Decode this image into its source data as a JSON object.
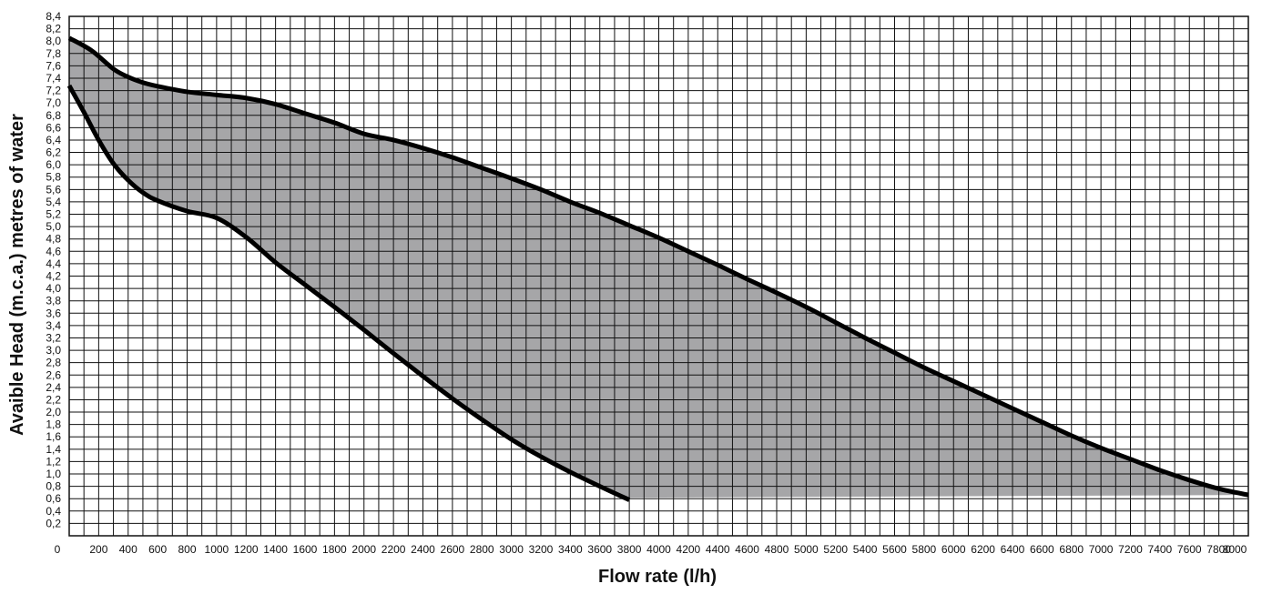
{
  "chart_data": {
    "type": "area",
    "xlabel": "Flow rate (l/h)",
    "ylabel": "Avaible Head (m.c.a.) metres of water",
    "xlim": [
      0,
      8000
    ],
    "ylim": [
      0,
      8.4
    ],
    "x_ticks": [
      "0",
      "200",
      "400",
      "600",
      "800",
      "1000",
      "1200",
      "1400",
      "1600",
      "1800",
      "2000",
      "2200",
      "2400",
      "2600",
      "2800",
      "3000",
      "3200",
      "3400",
      "3600",
      "3800",
      "4000",
      "4200",
      "4400",
      "4600",
      "4800",
      "5000",
      "5200",
      "5400",
      "5600",
      "5800",
      "6000",
      "6200",
      "6400",
      "6600",
      "6800",
      "7000",
      "7200",
      "7400",
      "7600",
      "7800",
      "8000"
    ],
    "y_ticks": [
      "0,2",
      "0,4",
      "0,6",
      "0,8",
      "1,0",
      "1,2",
      "1,4",
      "1,6",
      "1,8",
      "2,0",
      "2,2",
      "2,4",
      "2,6",
      "2,8",
      "3,0",
      "3,2",
      "3,4",
      "3,6",
      "3,8",
      "4,0",
      "4,2",
      "4,4",
      "4,6",
      "4,8",
      "5,0",
      "5,2",
      "5,4",
      "5,6",
      "5,8",
      "6,0",
      "6,2",
      "6,4",
      "6,6",
      "6,8",
      "7,0",
      "7,2",
      "7,4",
      "7,6",
      "7,8",
      "8,0",
      "8,2",
      "8,4"
    ],
    "grid": {
      "x_step": 100,
      "y_step": 0.2
    },
    "series": [
      {
        "x": [
          0,
          150,
          300,
          400,
          500,
          600,
          800,
          1000,
          1200,
          1400,
          1600,
          1800,
          2000,
          2200,
          2400,
          2600,
          2800,
          3000,
          3200,
          3400,
          3600,
          3800,
          4000,
          4200,
          4400,
          4600,
          4800,
          5000,
          5200,
          5400,
          5600,
          5800,
          6000,
          6200,
          6400,
          6600,
          6800,
          7000,
          7200,
          7400,
          7600,
          7800,
          8000
        ],
        "values": [
          8.05,
          7.85,
          7.55,
          7.42,
          7.33,
          7.27,
          7.18,
          7.13,
          7.08,
          6.98,
          6.83,
          6.68,
          6.5,
          6.4,
          6.27,
          6.12,
          5.95,
          5.78,
          5.6,
          5.4,
          5.22,
          5.02,
          4.82,
          4.6,
          4.38,
          4.15,
          3.93,
          3.7,
          3.45,
          3.2,
          2.96,
          2.72,
          2.5,
          2.28,
          2.06,
          1.84,
          1.62,
          1.42,
          1.24,
          1.06,
          0.9,
          0.76,
          0.66
        ]
      },
      {
        "x": [
          0,
          100,
          200,
          300,
          400,
          500,
          600,
          800,
          1000,
          1200,
          1400,
          1600,
          1800,
          2000,
          2200,
          2400,
          2600,
          2800,
          3000,
          3200,
          3400,
          3600,
          3800
        ],
        "values": [
          7.28,
          6.85,
          6.4,
          6.02,
          5.75,
          5.55,
          5.42,
          5.25,
          5.14,
          4.83,
          4.42,
          4.06,
          3.7,
          3.33,
          2.95,
          2.58,
          2.22,
          1.88,
          1.56,
          1.28,
          1.03,
          0.8,
          0.58
        ]
      }
    ],
    "fill_between": {
      "color": "#a6a6a8"
    },
    "colors": {
      "grid": "#111111",
      "curve": "#000000",
      "background": "#ffffff"
    }
  }
}
